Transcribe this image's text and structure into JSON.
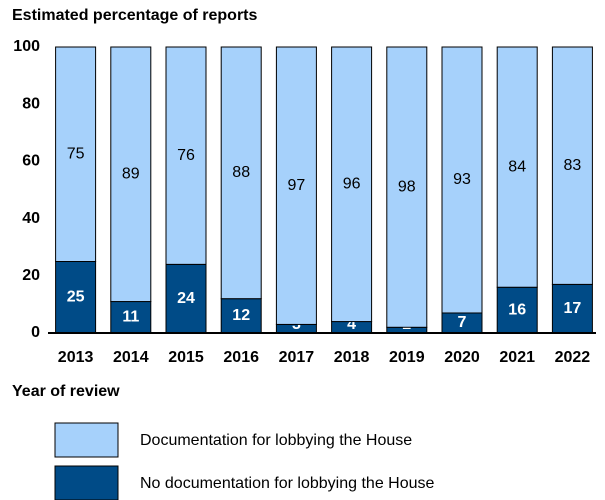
{
  "chart_data": {
    "type": "stacked_bar",
    "y_axis_title": "Estimated percentage of reports",
    "x_axis_title": "Year of review",
    "categories": [
      "2013",
      "2014",
      "2015",
      "2016",
      "2017",
      "2018",
      "2019",
      "2020",
      "2021",
      "2022"
    ],
    "series": [
      {
        "name": "Documentation for lobbying the House",
        "color": "#a6d1fb",
        "values": [
          75,
          89,
          76,
          88,
          97,
          96,
          98,
          93,
          84,
          83
        ]
      },
      {
        "name": "No documentation for lobbying the House",
        "color": "#004b87",
        "values": [
          25,
          11,
          24,
          12,
          3,
          4,
          2,
          7,
          16,
          17
        ]
      }
    ],
    "ylim": [
      0,
      100
    ],
    "yticks": [
      0,
      20,
      40,
      60,
      80,
      100
    ]
  }
}
